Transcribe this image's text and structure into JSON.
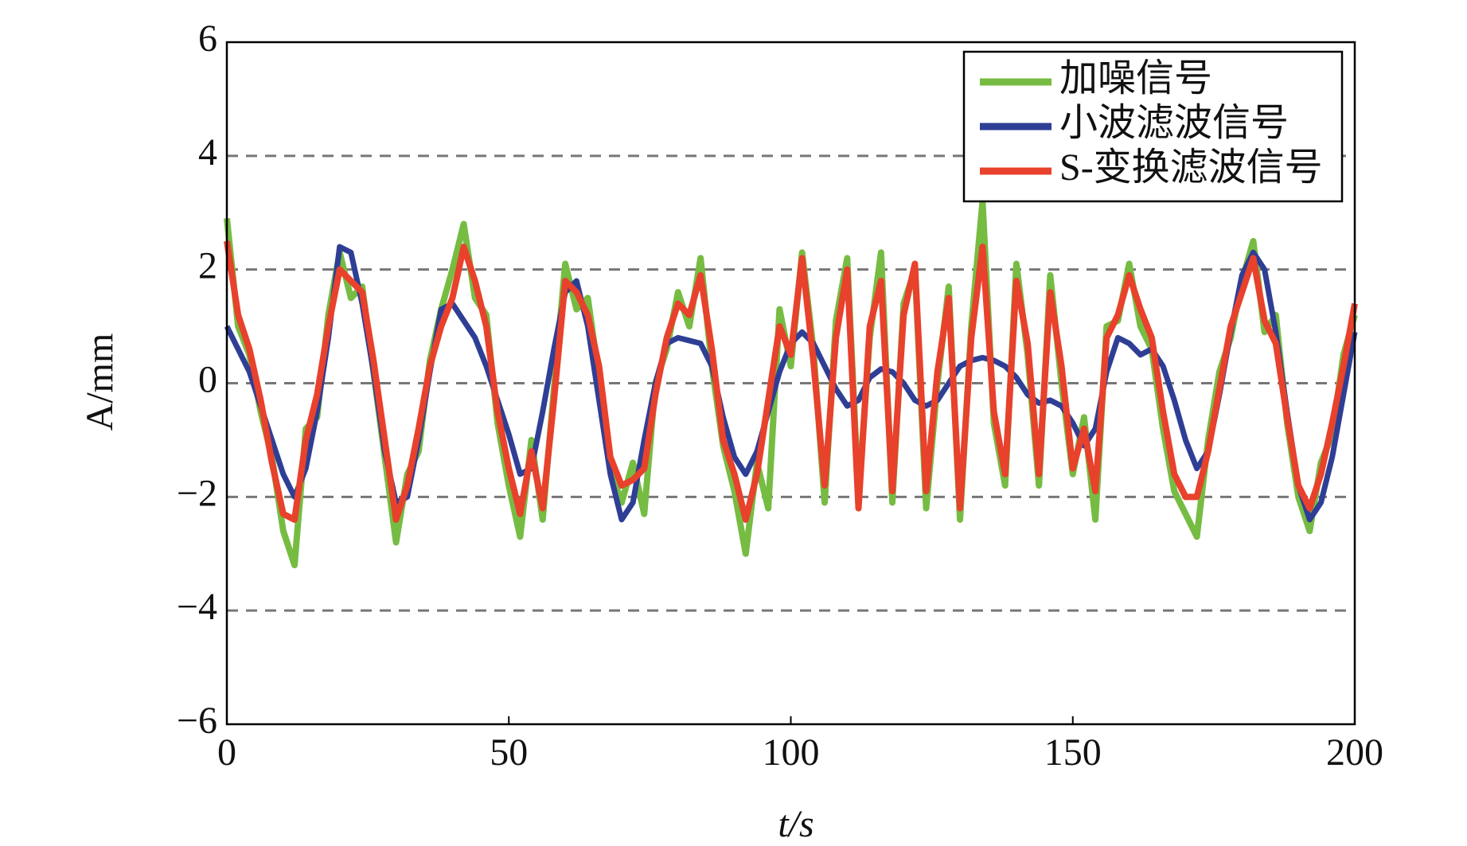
{
  "chart_data": {
    "type": "line",
    "xlabel": "t/s",
    "ylabel": "A/mm",
    "x": [
      0,
      2,
      4,
      6,
      8,
      10,
      12,
      14,
      16,
      18,
      20,
      22,
      24,
      26,
      28,
      30,
      32,
      34,
      36,
      38,
      40,
      42,
      44,
      46,
      48,
      50,
      52,
      54,
      56,
      58,
      60,
      62,
      64,
      66,
      68,
      70,
      72,
      74,
      76,
      78,
      80,
      82,
      84,
      86,
      88,
      90,
      92,
      94,
      96,
      98,
      100,
      102,
      104,
      106,
      108,
      110,
      112,
      114,
      116,
      118,
      120,
      122,
      124,
      126,
      128,
      130,
      132,
      134,
      136,
      138,
      140,
      142,
      144,
      146,
      148,
      150,
      152,
      154,
      156,
      158,
      160,
      162,
      164,
      166,
      168,
      170,
      172,
      174,
      176,
      178,
      180,
      182,
      184,
      186,
      188,
      190,
      192,
      194,
      196,
      198,
      200
    ],
    "series": [
      {
        "name": "加噪信号",
        "color": "#76bc43",
        "values": [
          2.9,
          1.0,
          0.5,
          -0.5,
          -1.3,
          -2.6,
          -3.2,
          -0.8,
          -0.6,
          1.2,
          2.3,
          1.5,
          1.7,
          0.2,
          -1.3,
          -2.8,
          -1.6,
          -1.2,
          0.4,
          1.3,
          2.0,
          2.8,
          1.5,
          1.2,
          -0.7,
          -1.8,
          -2.7,
          -1.0,
          -2.4,
          -0.1,
          2.1,
          1.3,
          1.5,
          0.1,
          -1.5,
          -2.1,
          -1.4,
          -2.3,
          0.0,
          0.6,
          1.6,
          1.0,
          2.2,
          0.3,
          -1.1,
          -1.9,
          -3.0,
          -1.4,
          -2.2,
          1.3,
          0.3,
          2.3,
          0.6,
          -2.1,
          1.1,
          2.2,
          -2.0,
          0.8,
          2.3,
          -2.1,
          1.4,
          2.0,
          -2.2,
          0.0,
          1.7,
          -2.4,
          1.0,
          3.2,
          -0.7,
          -1.8,
          2.1,
          0.5,
          -1.8,
          1.9,
          0.0,
          -1.6,
          -0.6,
          -2.4,
          1.0,
          1.1,
          2.1,
          1.0,
          0.6,
          -0.8,
          -1.9,
          -2.3,
          -2.7,
          -1.0,
          0.2,
          0.8,
          1.8,
          2.5,
          0.9,
          1.2,
          -0.7,
          -2.0,
          -2.6,
          -1.4,
          -0.9,
          0.5,
          1.2
        ]
      },
      {
        "name": "小波滤波信号",
        "color": "#2f3e95",
        "values": [
          1.0,
          0.6,
          0.2,
          -0.4,
          -1.0,
          -1.6,
          -2.0,
          -1.5,
          -0.5,
          0.8,
          2.4,
          2.3,
          1.4,
          0.2,
          -1.2,
          -2.1,
          -2.0,
          -1.0,
          0.2,
          1.3,
          1.4,
          1.1,
          0.8,
          0.3,
          -0.3,
          -0.9,
          -1.6,
          -1.5,
          -0.5,
          0.6,
          1.6,
          1.8,
          1.0,
          -0.3,
          -1.6,
          -2.4,
          -2.1,
          -1.0,
          0.0,
          0.7,
          0.8,
          0.75,
          0.7,
          0.3,
          -0.6,
          -1.3,
          -1.6,
          -1.2,
          -0.5,
          0.2,
          0.7,
          0.9,
          0.7,
          0.3,
          -0.1,
          -0.4,
          -0.3,
          0.1,
          0.25,
          0.2,
          0.0,
          -0.3,
          -0.4,
          -0.3,
          0.0,
          0.3,
          0.4,
          0.45,
          0.4,
          0.3,
          0.1,
          -0.2,
          -0.35,
          -0.3,
          -0.4,
          -0.7,
          -1.1,
          -0.8,
          0.2,
          0.8,
          0.7,
          0.5,
          0.6,
          0.3,
          -0.3,
          -1.0,
          -1.5,
          -1.2,
          -0.2,
          0.9,
          1.9,
          2.3,
          2.0,
          0.9,
          -0.5,
          -1.8,
          -2.4,
          -2.1,
          -1.3,
          -0.2,
          0.9
        ]
      },
      {
        "name": "S-变换滤波信号",
        "color": "#e8412c",
        "values": [
          2.5,
          1.2,
          0.6,
          -0.3,
          -1.4,
          -2.3,
          -2.4,
          -1.0,
          -0.2,
          1.0,
          2.0,
          1.8,
          1.6,
          0.4,
          -1.0,
          -2.4,
          -1.8,
          -0.8,
          0.3,
          1.0,
          1.5,
          2.4,
          1.8,
          1.0,
          -0.5,
          -1.5,
          -2.3,
          -1.2,
          -2.2,
          -0.3,
          1.8,
          1.6,
          1.2,
          0.3,
          -1.3,
          -1.8,
          -1.7,
          -1.5,
          -0.2,
          0.8,
          1.4,
          1.2,
          1.9,
          0.6,
          -1.0,
          -1.6,
          -2.4,
          -1.6,
          -0.3,
          1.0,
          0.5,
          2.2,
          0.4,
          -1.8,
          0.8,
          2.0,
          -2.2,
          1.0,
          1.8,
          -1.9,
          1.2,
          2.1,
          -1.9,
          0.2,
          1.5,
          -2.2,
          0.8,
          2.4,
          -0.5,
          -1.6,
          1.8,
          0.7,
          -1.6,
          1.6,
          0.3,
          -1.5,
          -0.8,
          -1.9,
          0.8,
          1.2,
          1.9,
          1.3,
          0.8,
          -0.5,
          -1.6,
          -2.0,
          -2.0,
          -1.2,
          -0.1,
          1.0,
          1.6,
          2.2,
          1.1,
          0.7,
          -0.6,
          -1.8,
          -2.2,
          -1.6,
          -0.7,
          0.3,
          1.4
        ]
      }
    ],
    "xlim": [
      0,
      200
    ],
    "xticks": [
      0,
      50,
      100,
      150,
      200
    ],
    "ylim": [
      -6,
      6
    ],
    "yticks": [
      {
        "value": -6,
        "label": "−6"
      },
      {
        "value": -4,
        "label": "−4"
      },
      {
        "value": -2,
        "label": "−2"
      },
      0,
      2,
      4,
      6
    ],
    "grid": true,
    "legend": "upper right"
  }
}
